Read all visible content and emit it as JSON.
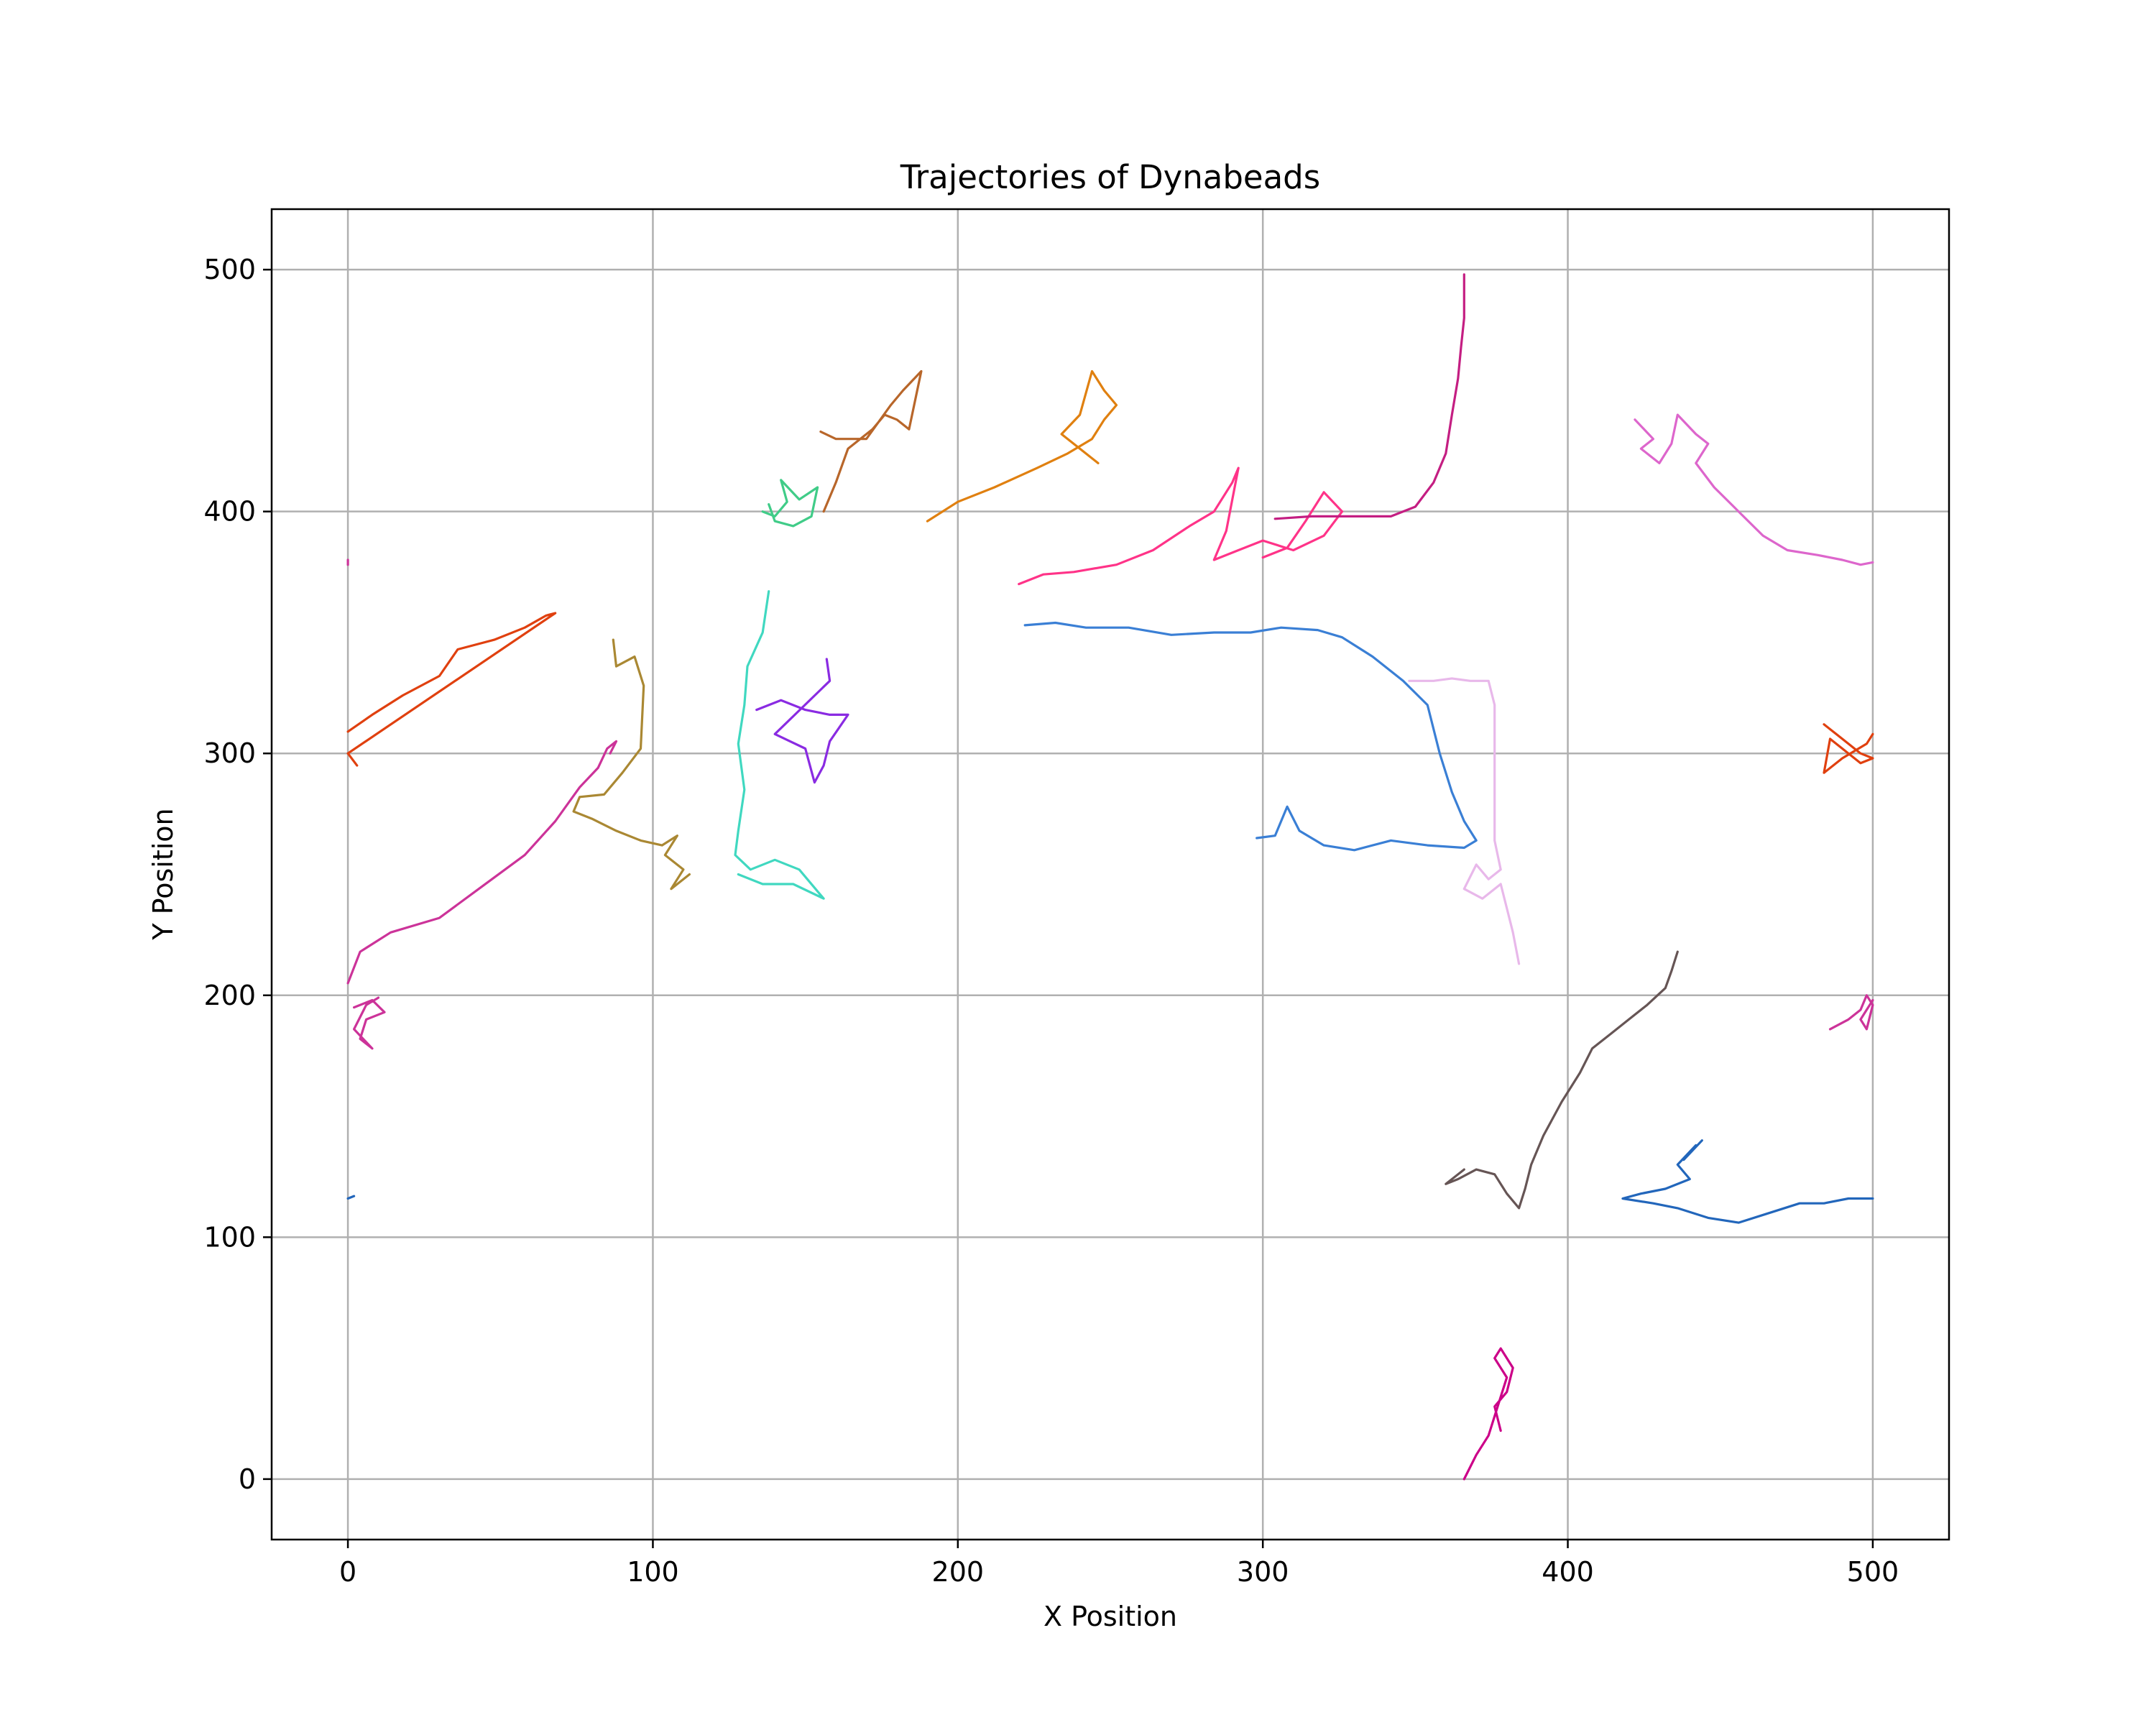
{
  "chart_data": {
    "type": "line",
    "title": "Trajectories of Dynabeads",
    "xlabel": "X Position",
    "ylabel": "Y Position",
    "xlim": [
      -25,
      525
    ],
    "ylim": [
      -25,
      525
    ],
    "xticks": [
      0,
      100,
      200,
      300,
      400,
      500
    ],
    "yticks": [
      0,
      100,
      200,
      300,
      400,
      500
    ],
    "xtick_labels": [
      "0",
      "100",
      "200",
      "300",
      "400",
      "500"
    ],
    "ytick_labels": [
      "0",
      "100",
      "200",
      "300",
      "400",
      "500"
    ],
    "grid": true,
    "legend": false,
    "series": [
      {
        "color": "#e0400f",
        "points": [
          [
            0,
            309
          ],
          [
            8,
            316
          ],
          [
            18,
            324
          ],
          [
            30,
            332
          ],
          [
            36,
            343
          ],
          [
            48,
            347
          ],
          [
            58,
            352
          ],
          [
            65,
            357
          ],
          [
            68,
            358
          ],
          [
            0,
            300
          ],
          [
            3,
            295
          ]
        ]
      },
      {
        "color": "#cc3399",
        "points": [
          [
            0,
            205
          ],
          [
            4,
            218
          ],
          [
            14,
            226
          ],
          [
            30,
            232
          ],
          [
            44,
            245
          ],
          [
            58,
            258
          ],
          [
            68,
            272
          ],
          [
            76,
            286
          ],
          [
            82,
            294
          ],
          [
            85,
            302
          ],
          [
            88,
            305
          ],
          [
            86,
            300
          ]
        ]
      },
      {
        "color": "#cc3399",
        "points": [
          [
            2,
            195
          ],
          [
            8,
            198
          ],
          [
            12,
            193
          ],
          [
            6,
            190
          ],
          [
            4,
            182
          ],
          [
            8,
            178
          ],
          [
            2,
            186
          ],
          [
            6,
            196
          ],
          [
            10,
            199
          ]
        ]
      },
      {
        "color": "#aa8833",
        "points": [
          [
            87,
            347
          ],
          [
            88,
            336
          ],
          [
            94,
            340
          ],
          [
            97,
            328
          ],
          [
            96,
            302
          ],
          [
            90,
            292
          ],
          [
            84,
            283
          ],
          [
            76,
            282
          ],
          [
            74,
            276
          ],
          [
            80,
            273
          ],
          [
            88,
            268
          ],
          [
            96,
            264
          ],
          [
            103,
            262
          ],
          [
            108,
            266
          ],
          [
            104,
            258
          ],
          [
            110,
            252
          ],
          [
            106,
            244
          ],
          [
            112,
            250
          ]
        ]
      },
      {
        "color": "#40d8c0",
        "points": [
          [
            138,
            367
          ],
          [
            136,
            350
          ],
          [
            131,
            336
          ],
          [
            130,
            320
          ],
          [
            128,
            304
          ],
          [
            130,
            285
          ],
          [
            128,
            268
          ],
          [
            127,
            258
          ],
          [
            132,
            252
          ],
          [
            140,
            256
          ],
          [
            148,
            252
          ],
          [
            156,
            240
          ],
          [
            146,
            246
          ],
          [
            136,
            246
          ],
          [
            128,
            250
          ]
        ]
      },
      {
        "color": "#8a2be2",
        "points": [
          [
            134,
            318
          ],
          [
            142,
            322
          ],
          [
            150,
            318
          ],
          [
            158,
            316
          ],
          [
            164,
            316
          ],
          [
            158,
            305
          ],
          [
            156,
            295
          ],
          [
            153,
            288
          ],
          [
            150,
            302
          ],
          [
            145,
            305
          ],
          [
            140,
            308
          ],
          [
            158,
            330
          ],
          [
            157,
            339
          ]
        ]
      },
      {
        "color": "#40cc88",
        "points": [
          [
            136,
            400
          ],
          [
            140,
            398
          ],
          [
            144,
            404
          ],
          [
            142,
            413
          ],
          [
            148,
            405
          ],
          [
            154,
            410
          ],
          [
            152,
            398
          ],
          [
            146,
            394
          ],
          [
            140,
            396
          ],
          [
            138,
            403
          ]
        ]
      },
      {
        "color": "#b8662a",
        "points": [
          [
            156,
            400
          ],
          [
            160,
            412
          ],
          [
            164,
            426
          ],
          [
            168,
            430
          ],
          [
            172,
            434
          ],
          [
            176,
            440
          ],
          [
            180,
            438
          ],
          [
            184,
            434
          ],
          [
            188,
            458
          ],
          [
            182,
            450
          ],
          [
            178,
            444
          ],
          [
            170,
            430
          ],
          [
            160,
            430
          ],
          [
            155,
            433
          ]
        ]
      },
      {
        "color": "#e08010",
        "points": [
          [
            190,
            396
          ],
          [
            200,
            404
          ],
          [
            212,
            410
          ],
          [
            226,
            418
          ],
          [
            236,
            424
          ],
          [
            244,
            430
          ],
          [
            248,
            438
          ],
          [
            252,
            444
          ],
          [
            248,
            450
          ],
          [
            244,
            458
          ],
          [
            240,
            440
          ],
          [
            234,
            432
          ],
          [
            246,
            420
          ]
        ]
      },
      {
        "color": "#ff3388",
        "points": [
          [
            220,
            370
          ],
          [
            228,
            374
          ],
          [
            238,
            375
          ],
          [
            252,
            378
          ],
          [
            264,
            384
          ],
          [
            276,
            394
          ],
          [
            284,
            400
          ],
          [
            290,
            412
          ],
          [
            292,
            418
          ],
          [
            288,
            392
          ],
          [
            284,
            380
          ],
          [
            292,
            384
          ],
          [
            300,
            388
          ],
          [
            310,
            384
          ],
          [
            320,
            390
          ],
          [
            326,
            400
          ],
          [
            320,
            408
          ],
          [
            314,
            396
          ],
          [
            308,
            385
          ],
          [
            300,
            381
          ]
        ]
      },
      {
        "color": "#c41e82",
        "points": [
          [
            304,
            397
          ],
          [
            316,
            398
          ],
          [
            330,
            398
          ],
          [
            342,
            398
          ],
          [
            350,
            402
          ],
          [
            356,
            412
          ],
          [
            360,
            424
          ],
          [
            362,
            440
          ],
          [
            364,
            455
          ],
          [
            365,
            468
          ],
          [
            366,
            480
          ],
          [
            366,
            498
          ]
        ]
      },
      {
        "color": "#3a7fd5",
        "points": [
          [
            222,
            353
          ],
          [
            232,
            354
          ],
          [
            242,
            352
          ],
          [
            256,
            352
          ],
          [
            270,
            349
          ],
          [
            284,
            350
          ],
          [
            296,
            350
          ],
          [
            306,
            352
          ],
          [
            318,
            351
          ],
          [
            326,
            348
          ],
          [
            336,
            340
          ],
          [
            346,
            330
          ],
          [
            354,
            320
          ],
          [
            358,
            300
          ],
          [
            362,
            284
          ],
          [
            366,
            272
          ],
          [
            370,
            264
          ],
          [
            366,
            261
          ],
          [
            354,
            262
          ],
          [
            342,
            264
          ],
          [
            330,
            260
          ],
          [
            320,
            262
          ],
          [
            312,
            268
          ],
          [
            308,
            278
          ],
          [
            304,
            266
          ],
          [
            298,
            265
          ]
        ]
      },
      {
        "color": "#e8b8ea",
        "points": [
          [
            348,
            330
          ],
          [
            356,
            330
          ],
          [
            362,
            331
          ],
          [
            368,
            330
          ],
          [
            374,
            330
          ],
          [
            376,
            320
          ],
          [
            376,
            300
          ],
          [
            376,
            282
          ],
          [
            376,
            264
          ],
          [
            378,
            252
          ],
          [
            374,
            248
          ],
          [
            370,
            254
          ],
          [
            366,
            244
          ],
          [
            372,
            240
          ],
          [
            378,
            246
          ],
          [
            380,
            236
          ],
          [
            382,
            226
          ],
          [
            384,
            213
          ]
        ]
      },
      {
        "color": "#dd66cc",
        "points": [
          [
            422,
            438
          ],
          [
            428,
            430
          ],
          [
            424,
            426
          ],
          [
            430,
            420
          ],
          [
            434,
            428
          ],
          [
            436,
            440
          ],
          [
            442,
            432
          ],
          [
            446,
            428
          ],
          [
            442,
            420
          ],
          [
            448,
            410
          ],
          [
            456,
            400
          ],
          [
            464,
            390
          ],
          [
            472,
            384
          ],
          [
            482,
            382
          ],
          [
            490,
            380
          ],
          [
            496,
            378
          ],
          [
            500,
            379
          ]
        ]
      },
      {
        "color": "#e0400f",
        "points": [
          [
            484,
            312
          ],
          [
            488,
            308
          ],
          [
            492,
            304
          ],
          [
            496,
            300
          ],
          [
            500,
            298
          ],
          [
            496,
            296
          ],
          [
            490,
            302
          ],
          [
            486,
            306
          ],
          [
            484,
            292
          ],
          [
            490,
            298
          ],
          [
            498,
            304
          ],
          [
            500,
            308
          ]
        ]
      },
      {
        "color": "#cc3399",
        "points": [
          [
            486,
            186
          ],
          [
            492,
            190
          ],
          [
            496,
            194
          ],
          [
            498,
            200
          ],
          [
            500,
            196
          ],
          [
            498,
            186
          ],
          [
            496,
            190
          ],
          [
            500,
            198
          ]
        ]
      },
      {
        "color": "#665555",
        "points": [
          [
            436,
            218
          ],
          [
            434,
            210
          ],
          [
            432,
            203
          ],
          [
            426,
            196
          ],
          [
            420,
            190
          ],
          [
            414,
            184
          ],
          [
            408,
            178
          ],
          [
            404,
            168
          ],
          [
            398,
            156
          ],
          [
            392,
            142
          ],
          [
            388,
            130
          ],
          [
            386,
            120
          ],
          [
            384,
            112
          ],
          [
            380,
            118
          ],
          [
            376,
            126
          ],
          [
            370,
            128
          ],
          [
            364,
            124
          ],
          [
            360,
            122
          ],
          [
            366,
            128
          ]
        ]
      },
      {
        "color": "#2266bb",
        "points": [
          [
            500,
            116
          ],
          [
            492,
            116
          ],
          [
            484,
            114
          ],
          [
            476,
            114
          ],
          [
            466,
            110
          ],
          [
            456,
            106
          ],
          [
            446,
            108
          ],
          [
            436,
            112
          ],
          [
            428,
            114
          ],
          [
            418,
            116
          ],
          [
            424,
            118
          ],
          [
            432,
            120
          ],
          [
            440,
            124
          ],
          [
            436,
            130
          ],
          [
            442,
            138
          ],
          [
            438,
            132
          ],
          [
            444,
            140
          ]
        ]
      },
      {
        "color": "#cc0088",
        "points": [
          [
            366,
            0
          ],
          [
            370,
            10
          ],
          [
            374,
            18
          ],
          [
            376,
            26
          ],
          [
            378,
            34
          ],
          [
            380,
            42
          ],
          [
            376,
            50
          ],
          [
            378,
            54
          ],
          [
            382,
            46
          ],
          [
            380,
            36
          ],
          [
            376,
            30
          ],
          [
            378,
            20
          ]
        ]
      },
      {
        "color": "#2266bb",
        "points": [
          [
            0,
            116
          ],
          [
            2,
            117
          ]
        ]
      },
      {
        "color": "#cc3399",
        "points": [
          [
            0,
            378
          ],
          [
            0,
            380
          ]
        ]
      }
    ]
  }
}
